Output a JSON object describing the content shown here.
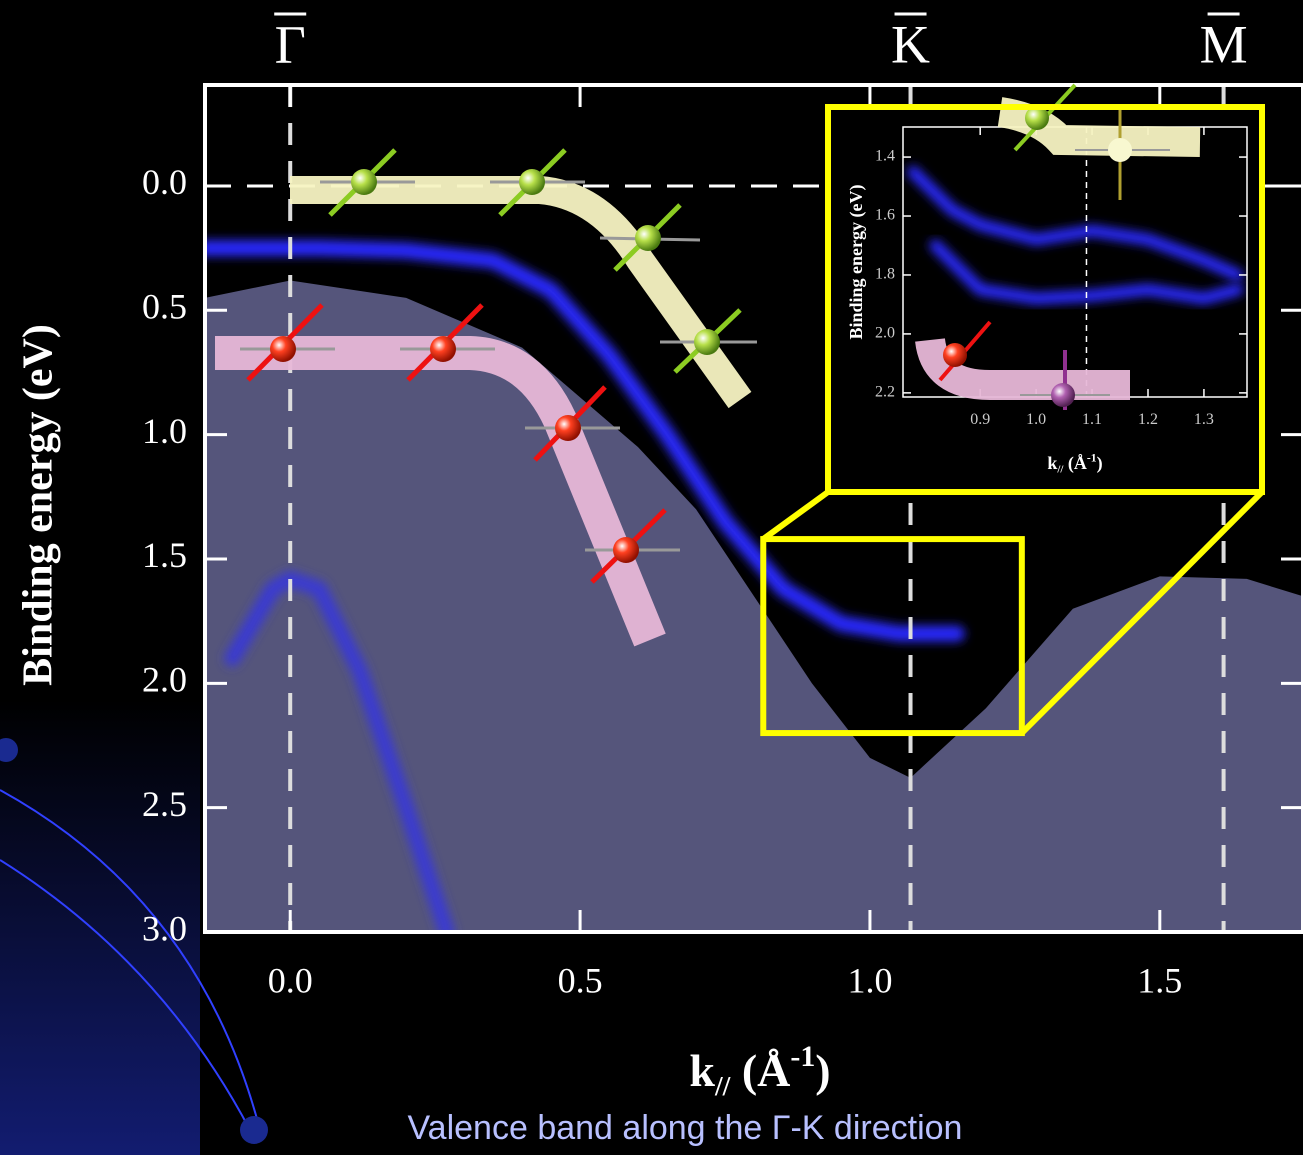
{
  "chart_data": [
    {
      "type": "line",
      "symmetry_points": [
        {
          "label": "Γ",
          "x": 0
        },
        {
          "label": "K",
          "x": 1.07
        },
        {
          "label": "M",
          "x": 1.61
        }
      ],
      "xlabel": [
        "k",
        "//",
        " (Å",
        "-1",
        ")"
      ],
      "ylabel": "Binding energy (eV)",
      "xlim": [
        -0.147,
        1.747
      ],
      "ylim": [
        -0.406,
        3.0
      ],
      "y_inverted": true,
      "xticks": [
        {
          "value": 0,
          "label": "0.0"
        },
        {
          "value": 0.5,
          "label": "0.5"
        },
        {
          "value": 1,
          "label": "1.0"
        },
        {
          "value": 1.5,
          "label": "1.5"
        }
      ],
      "yticks": [
        {
          "value": 0,
          "label": "0.0"
        },
        {
          "value": 0.5,
          "label": "0.5"
        },
        {
          "value": 1,
          "label": "1.0"
        },
        {
          "value": 1.5,
          "label": "1.5"
        },
        {
          "value": 2,
          "label": "2.0"
        },
        {
          "value": 2.5,
          "label": "2.5"
        },
        {
          "value": 3,
          "label": "3.0"
        }
      ],
      "hlines": [
        0
      ],
      "series": [
        {
          "color": "#5a5a82",
          "area": true,
          "x": [
            -0.147,
            0,
            0.2,
            0.4,
            0.6,
            0.7,
            0.8,
            0.9,
            1.0,
            1.07,
            1.2,
            1.35,
            1.5,
            1.65,
            1.747
          ],
          "values": [
            0.45,
            0.38,
            0.45,
            0.65,
            1.05,
            1.3,
            1.65,
            2.0,
            2.3,
            2.38,
            2.1,
            1.7,
            1.57,
            1.58,
            1.65
          ]
        },
        {
          "color": "#2a2aff",
          "x": [
            -0.147,
            0.05,
            0.2,
            0.35,
            0.45,
            0.55,
            0.65,
            0.75,
            0.85,
            0.95,
            1.05,
            1.15
          ],
          "values": [
            0.25,
            0.25,
            0.26,
            0.3,
            0.42,
            0.68,
            1.0,
            1.35,
            1.62,
            1.76,
            1.8,
            1.8
          ]
        },
        {
          "color": "#3a3ad0",
          "x": [
            -0.1,
            -0.03,
            0,
            0.05,
            0.12,
            0.2,
            0.27
          ],
          "values": [
            1.9,
            1.62,
            1.58,
            1.62,
            1.95,
            2.5,
            3.0
          ]
        }
      ],
      "zoom_box": {
        "xlim": [
          0.816,
          1.262
        ],
        "ylim": [
          1.42,
          2.2
        ],
        "color": "#ffff00"
      }
    },
    {
      "type": "line",
      "ylabel": "Binding energy (eV)",
      "xlabel": [
        "k",
        "//",
        " (Å",
        "-1",
        ")"
      ],
      "xlim": [
        0.762,
        1.377
      ],
      "ylim": [
        1.298,
        2.214
      ],
      "y_inverted": true,
      "xticks": [
        0.9,
        {
          "value": 1,
          "label": "1.0"
        },
        1.1,
        1.2,
        1.3
      ],
      "yticks": [
        1.4,
        1.6,
        1.8,
        {
          "value": 2,
          "label": "2.0"
        },
        2.2
      ],
      "vlines": [
        1.09
      ],
      "series": [
        {
          "color": "#2a2aff",
          "x": [
            0.78,
            0.85,
            0.9,
            1.0,
            1.1,
            1.2,
            1.3,
            1.36
          ],
          "values": [
            1.45,
            1.58,
            1.63,
            1.68,
            1.65,
            1.68,
            1.75,
            1.8
          ]
        },
        {
          "color": "#2a2aff",
          "x": [
            0.82,
            0.9,
            1.0,
            1.1,
            1.2,
            1.3,
            1.36
          ],
          "values": [
            1.7,
            1.85,
            1.88,
            1.87,
            1.85,
            1.88,
            1.85
          ]
        }
      ]
    }
  ],
  "caption": "Valence band along the Γ-K direction"
}
